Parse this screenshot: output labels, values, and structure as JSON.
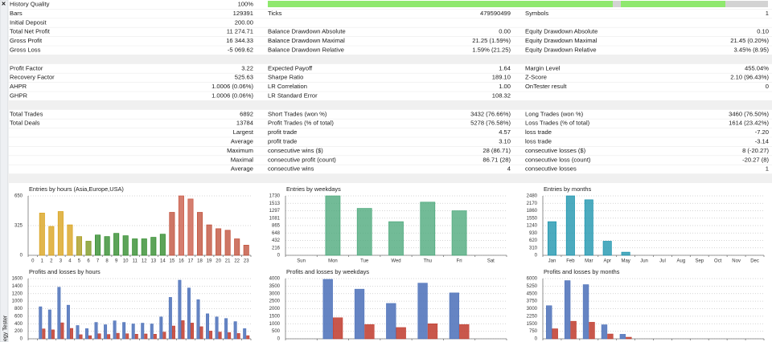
{
  "sidebar": {
    "close": "×",
    "label": "egy Tester"
  },
  "report": {
    "sections": [
      {
        "rows": [
          [
            {
              "label": "History Quality",
              "value": "100%"
            }
          ],
          [
            {
              "label": "Bars",
              "value": "129391"
            },
            {
              "label": "Ticks",
              "value": "479590499"
            },
            {
              "label": "Symbols",
              "value": "1"
            }
          ],
          [
            {
              "label": "Initial Deposit",
              "value": "200.00"
            }
          ],
          [
            {
              "label": "Total Net Profit",
              "value": "11 274.71"
            },
            {
              "label": "Balance Drawdown Absolute",
              "value": "0.00"
            },
            {
              "label": "Equity Drawdown Absolute",
              "value": "0.10"
            }
          ],
          [
            {
              "label": "Gross Profit",
              "value": "16 344.33"
            },
            {
              "label": "Balance Drawdown Maximal",
              "value": "21.25 (1.59%)"
            },
            {
              "label": "Equity Drawdown Maximal",
              "value": "21.45 (0.20%)"
            }
          ],
          [
            {
              "label": "Gross Loss",
              "value": "-5 069.62"
            },
            {
              "label": "Balance Drawdown Relative",
              "value": "1.59% (21.25)"
            },
            {
              "label": "Equity Drawdown Relative",
              "value": "3.45% (8.95)"
            }
          ]
        ]
      },
      {
        "rows": [
          [
            {
              "label": "Profit Factor",
              "value": "3.22"
            },
            {
              "label": "Expected Payoff",
              "value": "1.64"
            },
            {
              "label": "Margin Level",
              "value": "455.04%"
            }
          ],
          [
            {
              "label": "Recovery Factor",
              "value": "525.63"
            },
            {
              "label": "Sharpe Ratio",
              "value": "189.10"
            },
            {
              "label": "Z-Score",
              "value": "2.10 (96.43%)"
            }
          ],
          [
            {
              "label": "AHPR",
              "value": "1.0006 (0.06%)"
            },
            {
              "label": "LR Correlation",
              "value": "1.00"
            },
            {
              "label": "OnTester result",
              "value": "0"
            }
          ],
          [
            {
              "label": "GHPR",
              "value": "1.0006 (0.06%)"
            },
            {
              "label": "LR Standard Error",
              "value": "108.32"
            }
          ]
        ]
      },
      {
        "rows": [
          [
            {
              "label": "Total Trades",
              "value": "6892"
            },
            {
              "label": "Short Trades (won %)",
              "value": "3432 (76.66%)"
            },
            {
              "label": "Long Trades (won %)",
              "value": "3460 (76.50%)"
            }
          ],
          [
            {
              "label": "Total Deals",
              "value": "13784"
            },
            {
              "label": "Profit Trades (% of total)",
              "value": "5278 (76.58%)"
            },
            {
              "label": "Loss Trades (% of total)",
              "value": "1614 (23.42%)"
            }
          ],
          [
            {
              "value": "Largest"
            },
            {
              "label": "profit trade",
              "value": "4.57"
            },
            {
              "label": "loss trade",
              "value": "-7.20"
            }
          ],
          [
            {
              "value": "Average"
            },
            {
              "label": "profit trade",
              "value": "3.10"
            },
            {
              "label": "loss trade",
              "value": "-3.14"
            }
          ],
          [
            {
              "value": "Maximum"
            },
            {
              "label": "consecutive wins ($)",
              "value": "28 (86.71)"
            },
            {
              "label": "consecutive losses ($)",
              "value": "8 (-20.27)"
            }
          ],
          [
            {
              "value": "Maximal"
            },
            {
              "label": "consecutive profit (count)",
              "value": "86.71 (28)"
            },
            {
              "label": "consecutive loss (count)",
              "value": "-20.27 (8)"
            }
          ],
          [
            {
              "value": "Average"
            },
            {
              "label": "consecutive wins",
              "value": "4"
            },
            {
              "label": "consecutive losses",
              "value": "1"
            }
          ]
        ]
      }
    ]
  },
  "chart_data": [
    {
      "type": "bar",
      "title": "Entries by hours (Asia,Europe,USA)",
      "categories": [
        "0",
        "1",
        "2",
        "3",
        "4",
        "5",
        "6",
        "7",
        "8",
        "9",
        "10",
        "11",
        "12",
        "13",
        "14",
        "15",
        "16",
        "17",
        "18",
        "19",
        "20",
        "21",
        "22",
        "23"
      ],
      "values": [
        0,
        462,
        316,
        479,
        333,
        205,
        154,
        222,
        205,
        240,
        214,
        180,
        180,
        197,
        231,
        470,
        650,
        616,
        470,
        333,
        291,
        274,
        180,
        111
      ],
      "colors": [
        "#d9a21b",
        "#d9a21b",
        "#d9a21b",
        "#d9a21b",
        "#d9a21b",
        "#a89a1c",
        "#7a961e",
        "#2f8a2a",
        "#2f8a2a",
        "#2f8a2a",
        "#2f8a2a",
        "#2f8a2a",
        "#2f8a2a",
        "#2f8a2a",
        "#2f8a2a",
        "#c0503a",
        "#c95a46",
        "#c95a46",
        "#c0503a",
        "#c0503a",
        "#c0503a",
        "#c0503a",
        "#c0503a",
        "#c0503a"
      ],
      "ylim": [
        0,
        650
      ],
      "yticks": [
        0,
        325,
        650
      ],
      "grid": true
    },
    {
      "type": "bar",
      "title": "Entries by weekdays",
      "categories": [
        "Sun",
        "Mon",
        "Tue",
        "Wed",
        "Thu",
        "Fri",
        "Sat"
      ],
      "values": [
        0,
        1730,
        1366,
        979,
        1548,
        1297,
        0
      ],
      "color": "#4aa87a",
      "ylim": [
        0,
        1730
      ],
      "yticks": [
        0,
        216,
        432,
        648,
        865,
        1081,
        1297,
        1513,
        1730
      ],
      "grid": true
    },
    {
      "type": "bar",
      "title": "Entries by months",
      "categories": [
        "Jan",
        "Feb",
        "Mar",
        "Apr",
        "May",
        "Jun",
        "Jul",
        "Aug",
        "Sep",
        "Oct",
        "Nov",
        "Dec"
      ],
      "values": [
        1403,
        2480,
        2317,
        587,
        130,
        0,
        0,
        0,
        0,
        0,
        0,
        0
      ],
      "color": "#1a93ad",
      "ylim": [
        0,
        2480
      ],
      "yticks": [
        0,
        310,
        620,
        930,
        1240,
        1550,
        1860,
        2170,
        2480
      ],
      "grid": true
    },
    {
      "type": "grouped",
      "title": "Profits and losses by hours",
      "series": [
        {
          "color": "#4a6fb8",
          "values": [
            0,
            852,
            769,
            1371,
            894,
            353,
            270,
            436,
            374,
            478,
            436,
            395,
            416,
            395,
            582,
            1101,
            1558,
            1351,
            1039,
            665,
            582,
            540,
            457,
            270
          ]
        },
        {
          "color": "#c0392b",
          "values": [
            0,
            264,
            238,
            425,
            277,
            109,
            84,
            135,
            116,
            148,
            135,
            122,
            129,
            122,
            180,
            341,
            483,
            419,
            322,
            206,
            180,
            167,
            142,
            84
          ]
        }
      ],
      "ylim": [
        0,
        1600
      ],
      "yticks": [
        0,
        200,
        400,
        600,
        800,
        1000,
        1200,
        1400,
        1600
      ],
      "grid": true
    },
    {
      "type": "grouped",
      "title": "Profits and losses by weekdays",
      "series": [
        {
          "color": "#4a6fb8",
          "values": [
            0,
            3950,
            3300,
            2350,
            3700,
            3050,
            0
          ]
        },
        {
          "color": "#c0392b",
          "values": [
            0,
            1400,
            950,
            750,
            1000,
            950,
            0
          ]
        }
      ],
      "ylim": [
        0,
        4000
      ],
      "yticks": [
        0,
        500,
        1000,
        1500,
        2000,
        2500,
        3000,
        3500,
        4000
      ],
      "grid": true
    },
    {
      "type": "grouped",
      "title": "Profits and losses by months",
      "series": [
        {
          "color": "#4a6fb8",
          "values": [
            3300,
            5800,
            5400,
            1400,
            450,
            0,
            0,
            0,
            0,
            0,
            0,
            0
          ]
        },
        {
          "color": "#c0392b",
          "values": [
            1000,
            1750,
            1650,
            480,
            160,
            0,
            0,
            0,
            0,
            0,
            0,
            0
          ]
        }
      ],
      "ylim": [
        0,
        6000
      ],
      "yticks": [
        0,
        750,
        1500,
        2250,
        3000,
        3750,
        4500,
        5250,
        6000
      ],
      "grid": true
    }
  ]
}
